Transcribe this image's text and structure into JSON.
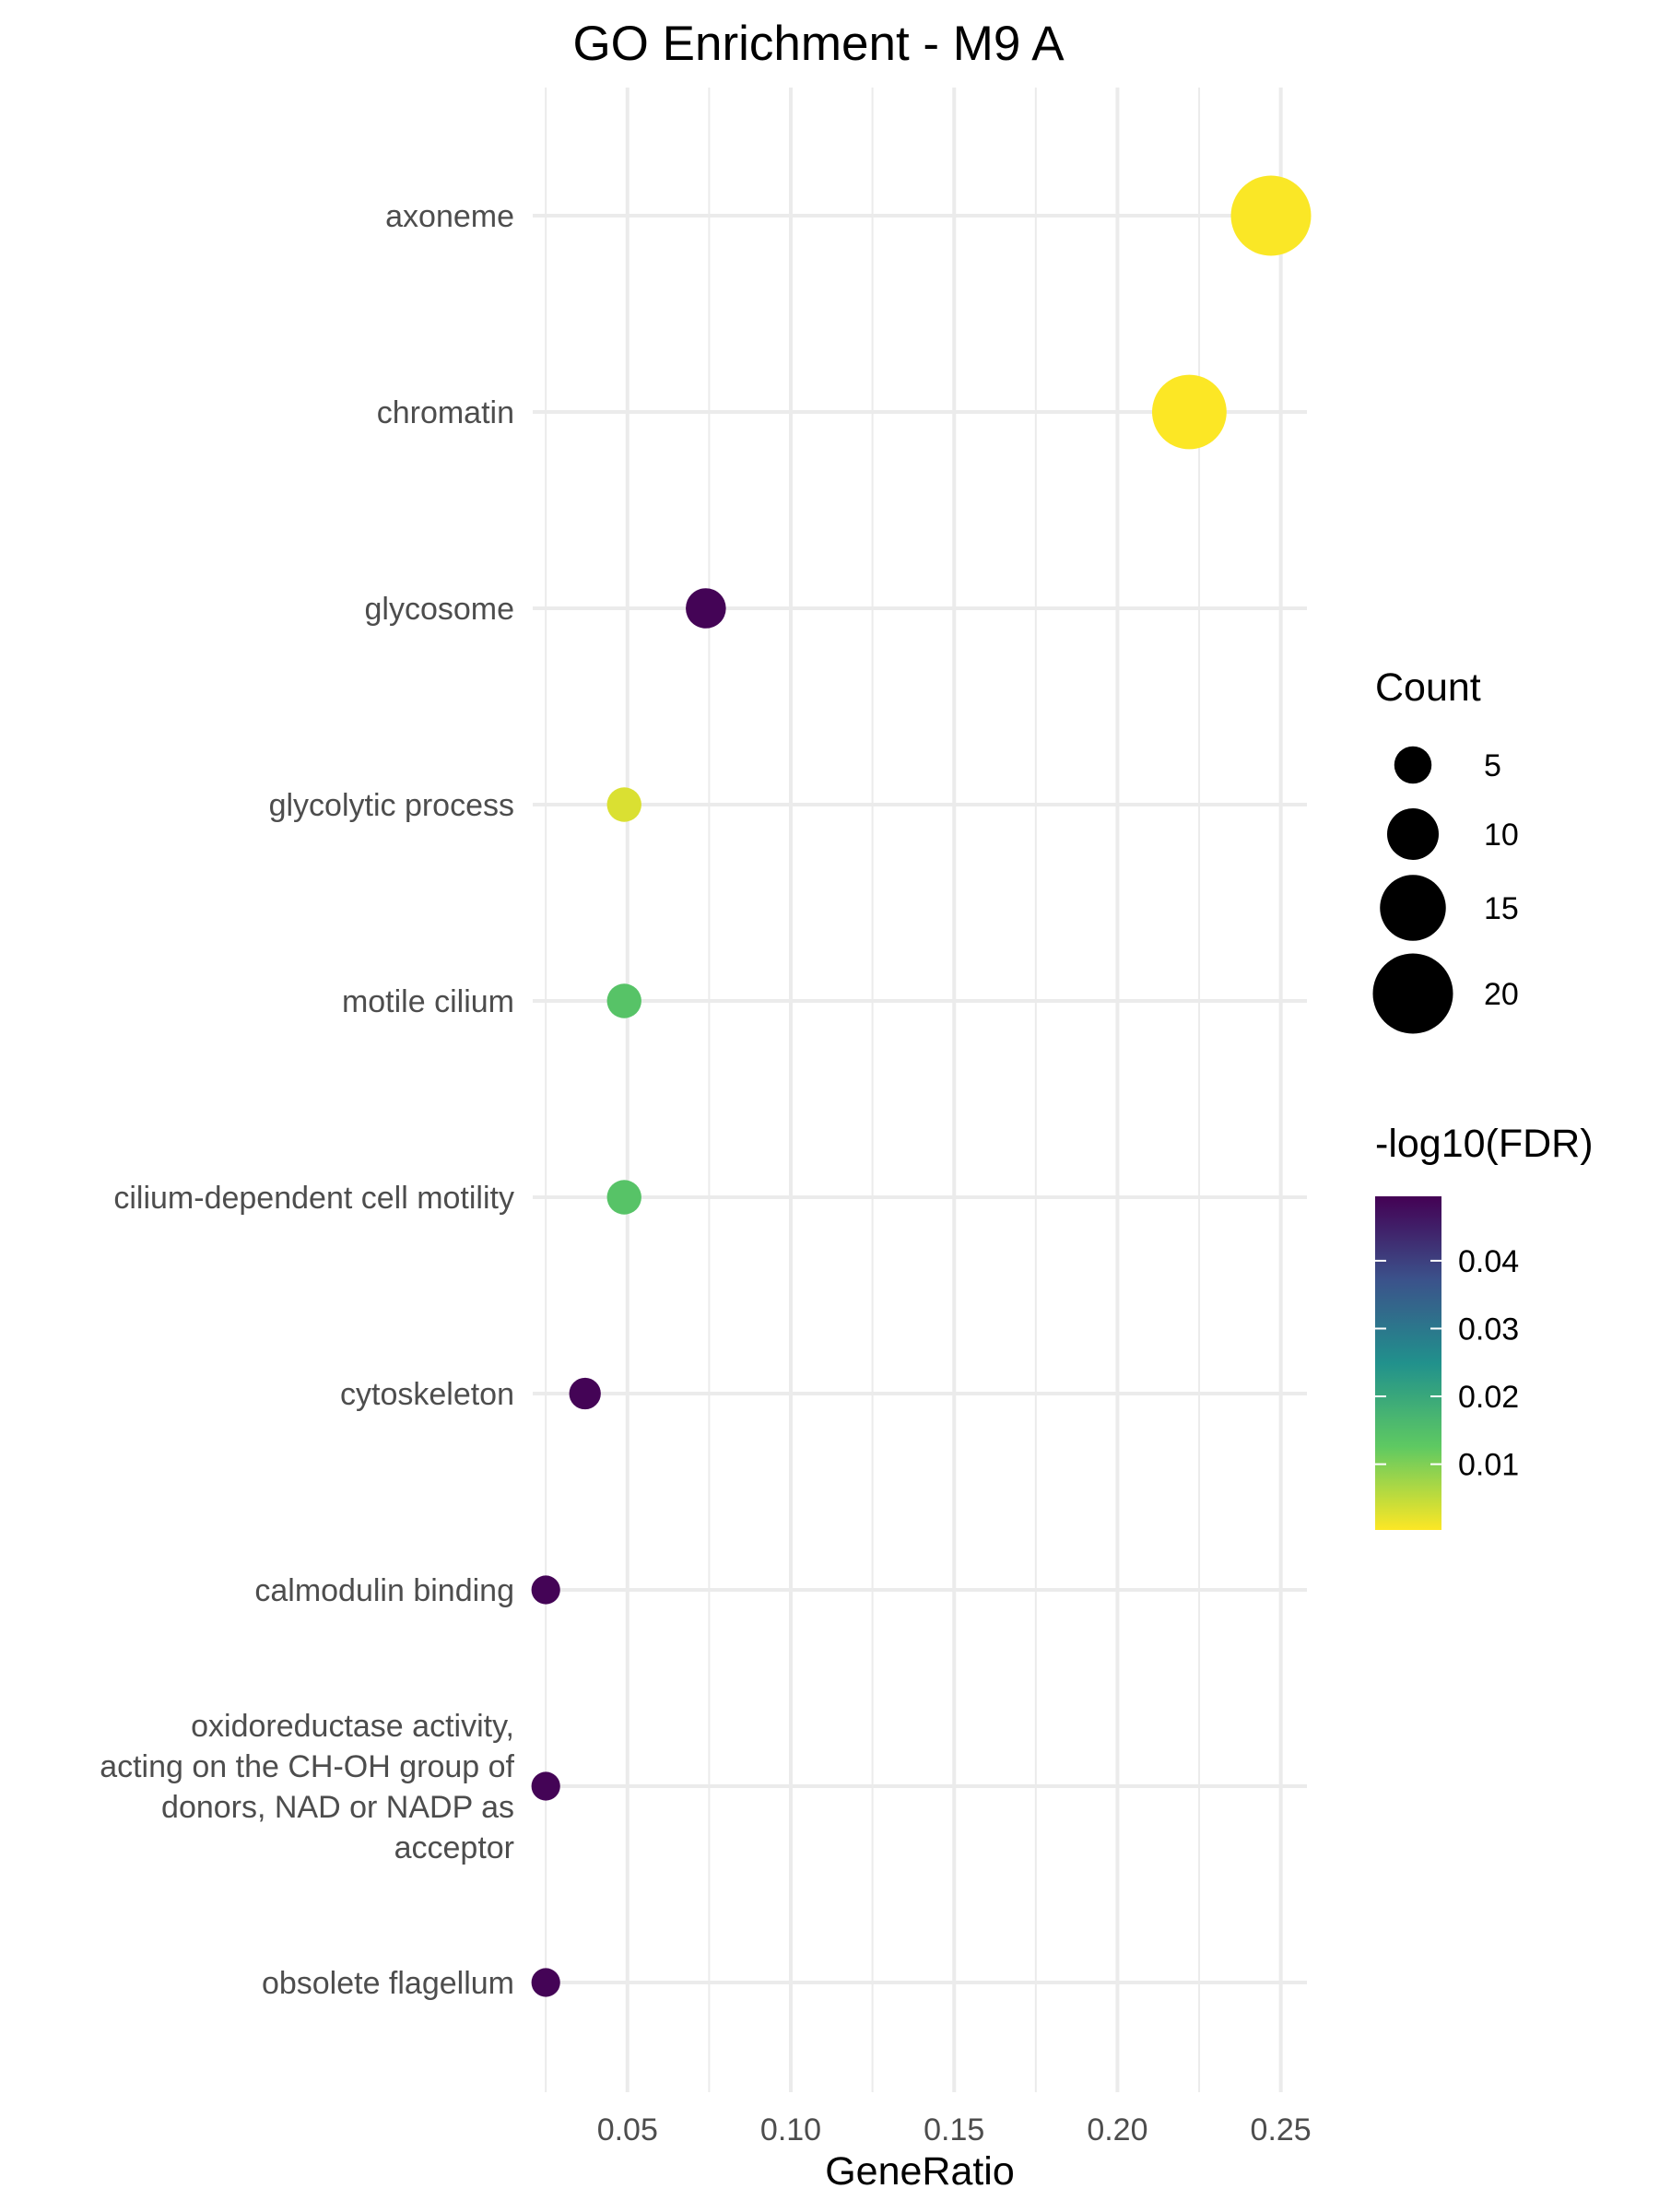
{
  "chart_data": {
    "type": "scatter",
    "title": "GO Enrichment - M9 A",
    "xlabel": "GeneRatio",
    "ylabel": "",
    "xlim": [
      0.021,
      0.258
    ],
    "xticks": [
      0.05,
      0.1,
      0.15,
      0.2,
      0.25
    ],
    "xtick_labels": [
      "0.05",
      "0.10",
      "0.15",
      "0.20",
      "0.25"
    ],
    "grid": true,
    "legend_position": "right",
    "categories": [
      {
        "label": [
          "axoneme"
        ],
        "gene_ratio": 0.247,
        "count": 20,
        "fdr": 0.0005
      },
      {
        "label": [
          "chromatin"
        ],
        "gene_ratio": 0.222,
        "count": 18,
        "fdr": 0.0004
      },
      {
        "label": [
          "glycosome"
        ],
        "gene_ratio": 0.074,
        "count": 6,
        "fdr": 0.049
      },
      {
        "label": [
          "glycolytic process"
        ],
        "gene_ratio": 0.049,
        "count": 4,
        "fdr": 0.003
      },
      {
        "label": [
          "motile cilium"
        ],
        "gene_ratio": 0.049,
        "count": 4,
        "fdr": 0.014
      },
      {
        "label": [
          "cilium-dependent cell motility"
        ],
        "gene_ratio": 0.049,
        "count": 4,
        "fdr": 0.014
      },
      {
        "label": [
          "cytoskeleton"
        ],
        "gene_ratio": 0.037,
        "count": 3,
        "fdr": 0.049
      },
      {
        "label": [
          "calmodulin binding"
        ],
        "gene_ratio": 0.025,
        "count": 2,
        "fdr": 0.049
      },
      {
        "label": [
          "oxidoreductase activity,",
          "acting on the CH-OH group of",
          "donors, NAD or NADP as",
          "acceptor"
        ],
        "gene_ratio": 0.025,
        "count": 2,
        "fdr": 0.049
      },
      {
        "label": [
          "obsolete flagellum"
        ],
        "gene_ratio": 0.025,
        "count": 2,
        "fdr": 0.049
      }
    ],
    "size_legend": {
      "title": "Count",
      "values": [
        5,
        10,
        15,
        20
      ],
      "labels": [
        "5",
        "10",
        "15",
        "20"
      ]
    },
    "color_legend": {
      "title": "-log10(FDR)",
      "range": [
        0.0003,
        0.0495
      ],
      "ticks": [
        0.04,
        0.03,
        0.02,
        0.01
      ],
      "tick_labels": [
        "0.04",
        "0.03",
        "0.02",
        "0.01"
      ],
      "palette": [
        "#fde725",
        "#5ec962",
        "#21918c",
        "#3b528b",
        "#440154"
      ]
    }
  }
}
